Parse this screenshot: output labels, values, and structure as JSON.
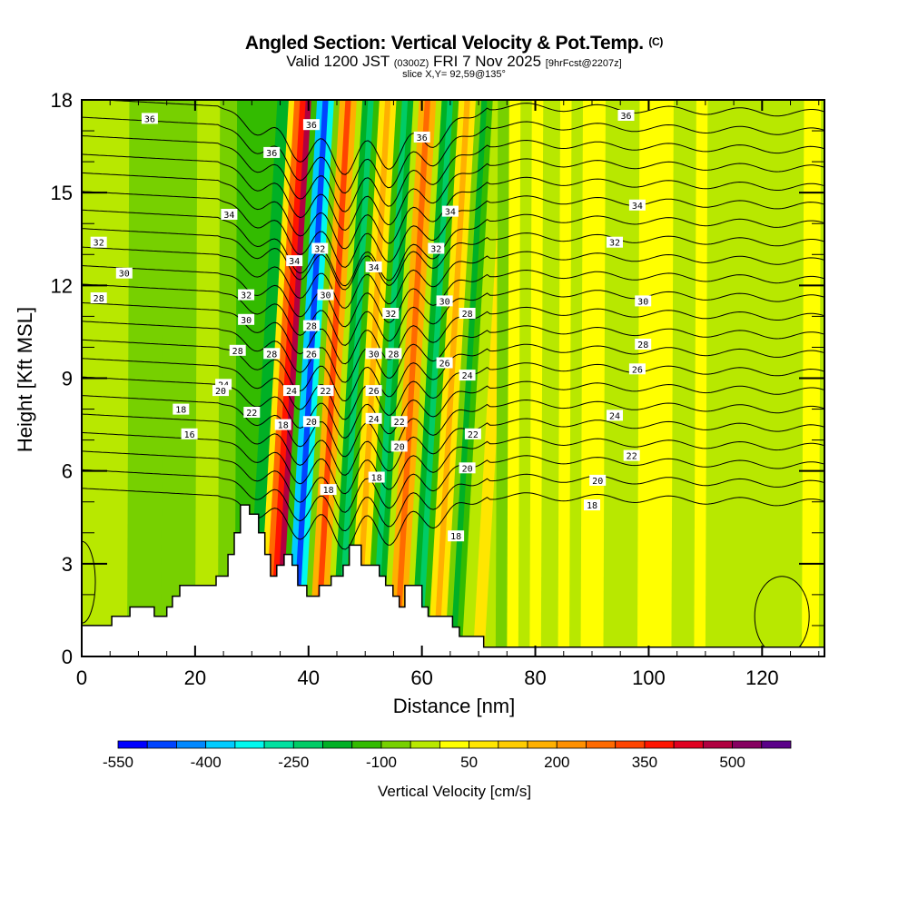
{
  "header": {
    "title": "Angled Section: Vertical Velocity & Pot.Temp.",
    "title_tag": "(C)",
    "valid_prefix": "Valid 1200 JST",
    "valid_utc": "(0300Z)",
    "valid_date": "FRI 7 Nov 2025",
    "forecast_info": "[9hrFcst@2207z]",
    "slice_info": "slice X,Y= 92,59@135°"
  },
  "chart_data": {
    "type": "heatmap",
    "title": "Angled Section: Vertical Velocity & Pot.Temp.",
    "xlabel": "Distance [nm]",
    "ylabel": "Height [Kft MSL]",
    "xlim": [
      0,
      131
    ],
    "ylim": [
      0,
      18
    ],
    "x_ticks": [
      "0",
      "20",
      "40",
      "60",
      "80",
      "100",
      "120"
    ],
    "x_tick_values": [
      0,
      20,
      40,
      60,
      80,
      100,
      120
    ],
    "x_minor_step": 5,
    "y_ticks": [
      "0",
      "3",
      "6",
      "9",
      "12",
      "15",
      "18"
    ],
    "y_tick_values": [
      0,
      3,
      6,
      9,
      12,
      15,
      18
    ],
    "y_minor_step": 1,
    "grid": false,
    "colorbar": {
      "label": "Vertical Velocity [cm/s]",
      "min": -550,
      "max": 600,
      "step": 50,
      "tick_labels": [
        "-550",
        "-400",
        "-250",
        "-100",
        "50",
        "200",
        "350",
        "500"
      ],
      "tick_values": [
        -550,
        -400,
        -250,
        -100,
        50,
        200,
        350,
        500
      ],
      "colors": [
        "#0000ff",
        "#0044ff",
        "#0088ff",
        "#00ccff",
        "#00f8ee",
        "#00e0a0",
        "#00cc66",
        "#00b025",
        "#33bb00",
        "#77d000",
        "#b8e800",
        "#ffff00",
        "#ffe600",
        "#ffcc00",
        "#ffb000",
        "#ff9000",
        "#ff6a00",
        "#ff4400",
        "#ff1400",
        "#e00020",
        "#b00040",
        "#860060",
        "#5a0088"
      ],
      "placement": "bottom"
    },
    "vertical_velocity_bands": [
      {
        "x": 0,
        "level": 11
      },
      {
        "x": 8,
        "level": 10
      },
      {
        "x": 14,
        "level": 10
      },
      {
        "x": 20,
        "level": 11
      },
      {
        "x": 24,
        "level": 10
      },
      {
        "x": 27,
        "level": 9
      },
      {
        "x": 29,
        "level": 8
      },
      {
        "x": 31,
        "level": 13
      },
      {
        "x": 32,
        "level": 17
      },
      {
        "x": 33,
        "level": 19
      },
      {
        "x": 34,
        "level": 21
      },
      {
        "x": 35,
        "level": 9
      },
      {
        "x": 36,
        "level": 4
      },
      {
        "x": 37,
        "level": 2
      },
      {
        "x": 38,
        "level": 5
      },
      {
        "x": 39,
        "level": 10
      },
      {
        "x": 40,
        "level": 15
      },
      {
        "x": 41,
        "level": 18
      },
      {
        "x": 42,
        "level": 15
      },
      {
        "x": 43,
        "level": 11
      },
      {
        "x": 44,
        "level": 8
      },
      {
        "x": 45,
        "level": 7
      },
      {
        "x": 46,
        "level": 9
      },
      {
        "x": 47,
        "level": 13
      },
      {
        "x": 48,
        "level": 15
      },
      {
        "x": 49,
        "level": 13
      },
      {
        "x": 50,
        "level": 9
      },
      {
        "x": 51,
        "level": 7
      },
      {
        "x": 52,
        "level": 8
      },
      {
        "x": 53,
        "level": 11
      },
      {
        "x": 54,
        "level": 15
      },
      {
        "x": 55,
        "level": 17
      },
      {
        "x": 56,
        "level": 15
      },
      {
        "x": 57,
        "level": 11
      },
      {
        "x": 58,
        "level": 8
      },
      {
        "x": 59,
        "level": 7
      },
      {
        "x": 60,
        "level": 9
      },
      {
        "x": 61,
        "level": 13
      },
      {
        "x": 62,
        "level": 15
      },
      {
        "x": 63,
        "level": 13
      },
      {
        "x": 64,
        "level": 10
      },
      {
        "x": 65,
        "level": 8
      },
      {
        "x": 66,
        "level": 9
      },
      {
        "x": 67,
        "level": 11
      },
      {
        "x": 69,
        "level": 13
      },
      {
        "x": 71,
        "level": 11
      },
      {
        "x": 73,
        "level": 10
      },
      {
        "x": 75,
        "level": 12
      },
      {
        "x": 77,
        "level": 11
      },
      {
        "x": 79,
        "level": 12
      },
      {
        "x": 81,
        "level": 11
      },
      {
        "x": 84,
        "level": 12
      },
      {
        "x": 86,
        "level": 11
      },
      {
        "x": 88,
        "level": 12
      },
      {
        "x": 92,
        "level": 11
      },
      {
        "x": 98,
        "level": 12
      },
      {
        "x": 104,
        "level": 11
      },
      {
        "x": 108,
        "level": 12
      },
      {
        "x": 110,
        "level": 11
      },
      {
        "x": 118,
        "level": 11
      },
      {
        "x": 123,
        "level": 11
      },
      {
        "x": 125,
        "level": 11
      },
      {
        "x": 127,
        "level": 12
      },
      {
        "x": 130,
        "level": 11
      }
    ],
    "terrain_kft": [
      {
        "x": 0,
        "h": 1.0
      },
      {
        "x": 5.3,
        "h": 1.3
      },
      {
        "x": 8.5,
        "h": 1.6
      },
      {
        "x": 12.8,
        "h": 1.3
      },
      {
        "x": 15.0,
        "h": 1.6
      },
      {
        "x": 16.0,
        "h": 1.95
      },
      {
        "x": 17.3,
        "h": 2.3
      },
      {
        "x": 23.7,
        "h": 2.6
      },
      {
        "x": 25.8,
        "h": 3.3
      },
      {
        "x": 26.9,
        "h": 4.0
      },
      {
        "x": 28.0,
        "h": 4.9
      },
      {
        "x": 29.6,
        "h": 4.6
      },
      {
        "x": 31.2,
        "h": 4.0
      },
      {
        "x": 32.3,
        "h": 3.3
      },
      {
        "x": 33.3,
        "h": 2.6
      },
      {
        "x": 34.4,
        "h": 2.95
      },
      {
        "x": 35.7,
        "h": 3.3
      },
      {
        "x": 37.1,
        "h": 2.95
      },
      {
        "x": 38.1,
        "h": 2.3
      },
      {
        "x": 39.7,
        "h": 1.95
      },
      {
        "x": 41.9,
        "h": 2.3
      },
      {
        "x": 44.0,
        "h": 2.6
      },
      {
        "x": 46.1,
        "h": 2.95
      },
      {
        "x": 47.2,
        "h": 3.6
      },
      {
        "x": 49.3,
        "h": 2.95
      },
      {
        "x": 52.5,
        "h": 2.6
      },
      {
        "x": 53.6,
        "h": 2.3
      },
      {
        "x": 54.9,
        "h": 1.95
      },
      {
        "x": 56.0,
        "h": 1.6
      },
      {
        "x": 57.0,
        "h": 2.3
      },
      {
        "x": 60.0,
        "h": 1.6
      },
      {
        "x": 61.1,
        "h": 1.3
      },
      {
        "x": 65.4,
        "h": 0.95
      },
      {
        "x": 66.6,
        "h": 0.65
      },
      {
        "x": 70.9,
        "h": 0.3
      },
      {
        "x": 131,
        "h": 0.3
      }
    ],
    "pot_temp_contours": {
      "units": "K offset labels",
      "levels": [
        16,
        17,
        18,
        19,
        20,
        21,
        22,
        23,
        24,
        25,
        26,
        27,
        28,
        29,
        30,
        31,
        32,
        33,
        34,
        35,
        36,
        37
      ],
      "labeled": [
        {
          "text": "36",
          "x": 12,
          "y": 17.4
        },
        {
          "text": "32",
          "x": 3,
          "y": 13.4
        },
        {
          "text": "30",
          "x": 7.5,
          "y": 12.4
        },
        {
          "text": "28",
          "x": 3,
          "y": 11.6
        },
        {
          "text": "34",
          "x": 26,
          "y": 14.3
        },
        {
          "text": "36",
          "x": 33.5,
          "y": 16.3
        },
        {
          "text": "36",
          "x": 40.5,
          "y": 17.2
        },
        {
          "text": "32",
          "x": 29,
          "y": 11.7
        },
        {
          "text": "30",
          "x": 29,
          "y": 10.9
        },
        {
          "text": "28",
          "x": 27.5,
          "y": 9.9
        },
        {
          "text": "24",
          "x": 25,
          "y": 8.8
        },
        {
          "text": "20",
          "x": 24.5,
          "y": 8.6
        },
        {
          "text": "18",
          "x": 17.5,
          "y": 8.0
        },
        {
          "text": "16",
          "x": 19,
          "y": 7.2
        },
        {
          "text": "22",
          "x": 30,
          "y": 7.9
        },
        {
          "text": "34",
          "x": 37.5,
          "y": 12.8
        },
        {
          "text": "28",
          "x": 33.5,
          "y": 9.8
        },
        {
          "text": "24",
          "x": 37,
          "y": 8.6
        },
        {
          "text": "18",
          "x": 35.5,
          "y": 7.5
        },
        {
          "text": "32",
          "x": 42,
          "y": 13.2
        },
        {
          "text": "30",
          "x": 43,
          "y": 11.7
        },
        {
          "text": "28",
          "x": 40.5,
          "y": 10.7
        },
        {
          "text": "26",
          "x": 40.5,
          "y": 9.8
        },
        {
          "text": "22",
          "x": 43,
          "y": 8.6
        },
        {
          "text": "20",
          "x": 40.5,
          "y": 7.6
        },
        {
          "text": "18",
          "x": 43.5,
          "y": 5.4
        },
        {
          "text": "36",
          "x": 60,
          "y": 16.8
        },
        {
          "text": "34",
          "x": 51.5,
          "y": 12.6
        },
        {
          "text": "32",
          "x": 54.5,
          "y": 11.1
        },
        {
          "text": "30",
          "x": 51.5,
          "y": 9.8
        },
        {
          "text": "28",
          "x": 55,
          "y": 9.8
        },
        {
          "text": "26",
          "x": 51.5,
          "y": 8.6
        },
        {
          "text": "24",
          "x": 51.5,
          "y": 7.7
        },
        {
          "text": "22",
          "x": 56,
          "y": 7.6
        },
        {
          "text": "20",
          "x": 56,
          "y": 6.8
        },
        {
          "text": "18",
          "x": 52,
          "y": 5.8
        },
        {
          "text": "34",
          "x": 65,
          "y": 14.4
        },
        {
          "text": "32",
          "x": 62.5,
          "y": 13.2
        },
        {
          "text": "30",
          "x": 64,
          "y": 11.5
        },
        {
          "text": "28",
          "x": 68,
          "y": 11.1
        },
        {
          "text": "26",
          "x": 64,
          "y": 9.5
        },
        {
          "text": "24",
          "x": 68,
          "y": 9.1
        },
        {
          "text": "22",
          "x": 69,
          "y": 7.2
        },
        {
          "text": "20",
          "x": 68,
          "y": 6.1
        },
        {
          "text": "18",
          "x": 66,
          "y": 3.9
        },
        {
          "text": "36",
          "x": 96,
          "y": 17.5
        },
        {
          "text": "34",
          "x": 98,
          "y": 14.6
        },
        {
          "text": "32",
          "x": 94,
          "y": 13.4
        },
        {
          "text": "30",
          "x": 99,
          "y": 11.5
        },
        {
          "text": "28",
          "x": 99,
          "y": 10.1
        },
        {
          "text": "26",
          "x": 98,
          "y": 9.3
        },
        {
          "text": "24",
          "x": 94,
          "y": 7.8
        },
        {
          "text": "22",
          "x": 97,
          "y": 6.5
        },
        {
          "text": "20",
          "x": 91,
          "y": 5.7
        },
        {
          "text": "18",
          "x": 90,
          "y": 4.9
        }
      ]
    }
  }
}
